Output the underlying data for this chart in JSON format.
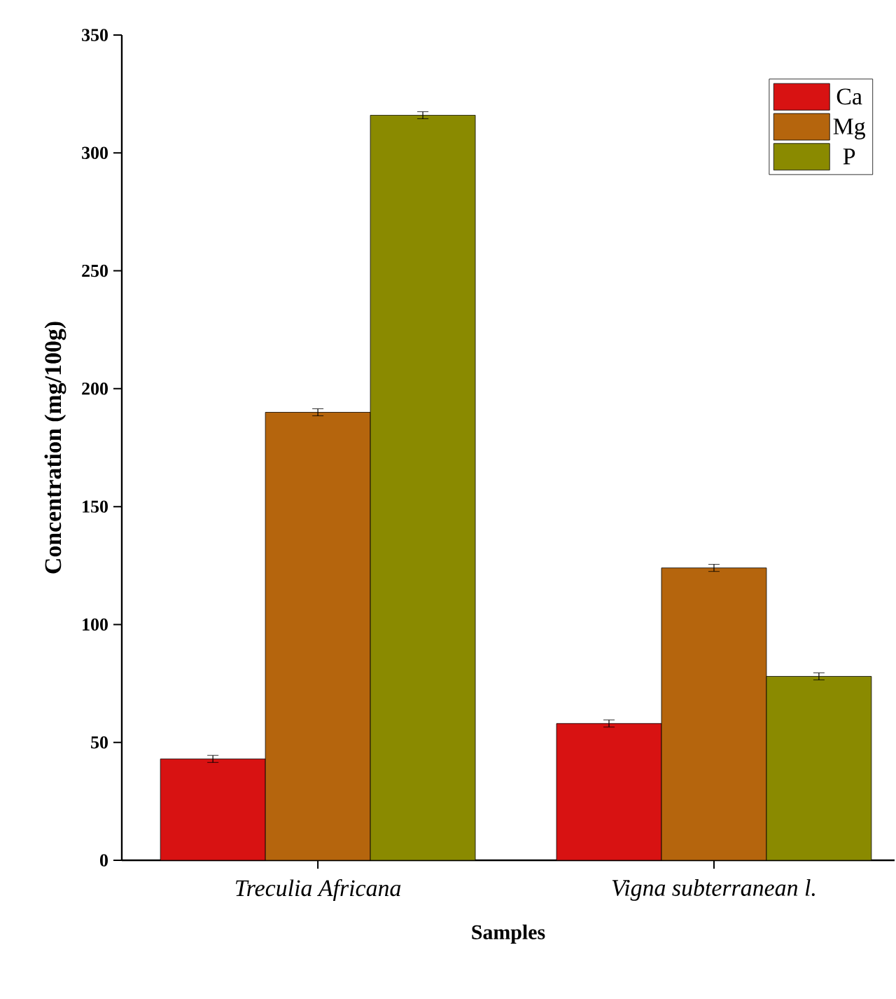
{
  "chart_data": {
    "type": "bar",
    "ylabel": "Concentration (mg/100g)",
    "xlabel": "Samples",
    "categories": [
      "Treculia Africana",
      "Vigna subterranean l."
    ],
    "series": [
      {
        "name": "Ca",
        "color": "#d81212",
        "values": [
          43,
          58
        ],
        "errors": [
          1.5,
          1.5
        ]
      },
      {
        "name": "Mg",
        "color": "#b5650d",
        "values": [
          190,
          124
        ],
        "errors": [
          1.5,
          1.5
        ]
      },
      {
        "name": "P",
        "color": "#8a8a00",
        "values": [
          316,
          78
        ],
        "errors": [
          1.5,
          1.5
        ]
      }
    ],
    "ylim": [
      0,
      350
    ],
    "yticks": [
      0,
      50,
      100,
      150,
      200,
      250,
      300,
      350
    ],
    "legend": "top right"
  }
}
